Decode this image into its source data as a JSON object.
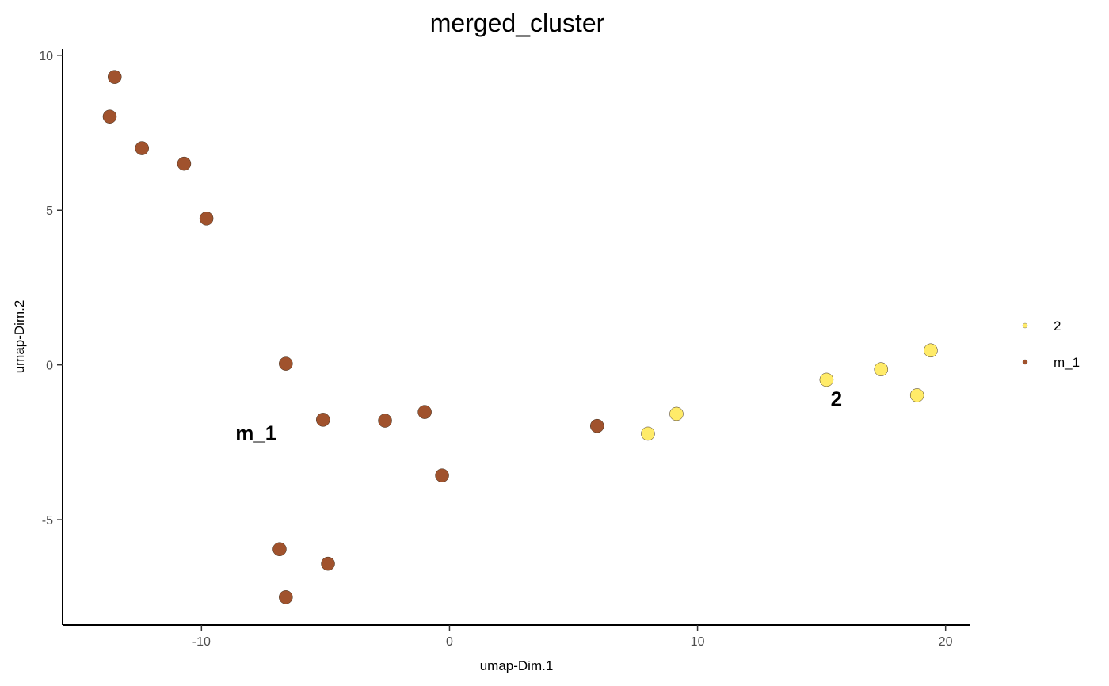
{
  "chart_data": {
    "type": "scatter",
    "title": "merged_cluster",
    "xlabel": "umap-Dim.1",
    "ylabel": "umap-Dim.2",
    "xlim": [
      -15.6,
      21
    ],
    "ylim": [
      -8.4,
      10.2
    ],
    "x_ticks": [
      -10,
      0,
      10,
      20
    ],
    "y_ticks": [
      -5,
      0,
      5,
      10
    ],
    "x_tick_labels": [
      "-10",
      "0",
      "10",
      "20"
    ],
    "y_tick_labels": [
      "-5",
      "0",
      "5",
      "10"
    ],
    "grid": false,
    "legend_position": "right",
    "series": [
      {
        "name": "2",
        "color": "#FFEB69",
        "points": [
          {
            "x": 8.0,
            "y": -2.22
          },
          {
            "x": 9.15,
            "y": -1.58
          },
          {
            "x": 15.2,
            "y": -0.48
          },
          {
            "x": 17.4,
            "y": -0.14
          },
          {
            "x": 18.85,
            "y": -0.98
          },
          {
            "x": 19.4,
            "y": 0.47
          }
        ],
        "cluster_label": {
          "text": "2",
          "x": 15.6,
          "y": -1.1
        }
      },
      {
        "name": "m_1",
        "color": "#A0522D",
        "points": [
          {
            "x": -13.5,
            "y": 9.3
          },
          {
            "x": -13.7,
            "y": 8.02
          },
          {
            "x": -12.4,
            "y": 7.0
          },
          {
            "x": -10.7,
            "y": 6.5
          },
          {
            "x": -9.8,
            "y": 4.73
          },
          {
            "x": -6.6,
            "y": 0.04
          },
          {
            "x": -5.1,
            "y": -1.77
          },
          {
            "x": -2.6,
            "y": -1.8
          },
          {
            "x": -1.0,
            "y": -1.52
          },
          {
            "x": -0.3,
            "y": -3.57
          },
          {
            "x": 5.95,
            "y": -1.97
          },
          {
            "x": -6.85,
            "y": -5.95
          },
          {
            "x": -4.9,
            "y": -6.42
          },
          {
            "x": -6.6,
            "y": -7.5
          }
        ],
        "cluster_label": {
          "text": "m_1",
          "x": -7.8,
          "y": -2.2
        }
      }
    ],
    "legend": [
      {
        "label": "2",
        "color": "#FFEB69"
      },
      {
        "label": "m_1",
        "color": "#A0522D"
      }
    ]
  }
}
